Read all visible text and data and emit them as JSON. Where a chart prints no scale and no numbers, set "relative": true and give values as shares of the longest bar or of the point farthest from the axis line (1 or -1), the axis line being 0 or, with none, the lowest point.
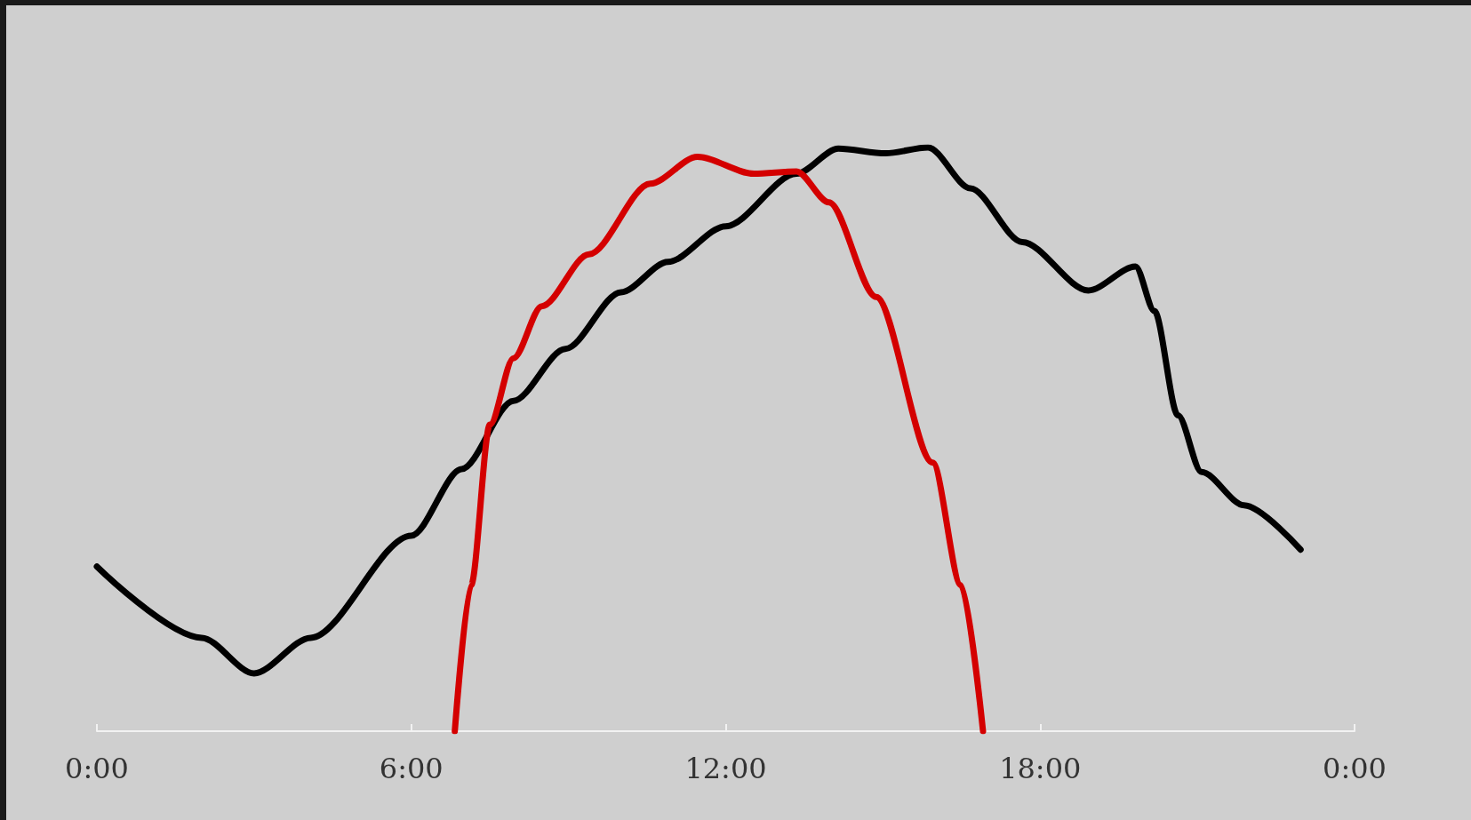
{
  "chart_data": {
    "type": "line",
    "relative": true,
    "grid": false,
    "marker": "none",
    "line_style": "solid",
    "xlim": [
      0,
      24
    ],
    "xticks": [
      {
        "value": 0,
        "label": "0:00"
      },
      {
        "value": 6,
        "label": "6:00"
      },
      {
        "value": 12,
        "label": "12:00"
      },
      {
        "value": 18,
        "label": "18:00"
      },
      {
        "value": 24,
        "label": "0:00"
      }
    ],
    "series": [
      {
        "color": "#000000",
        "x": [
          0,
          2.0,
          3.0,
          4.08,
          6.0,
          6.96,
          7.95,
          8.94,
          10.0,
          10.9,
          12.0,
          13.35,
          14.15,
          15.05,
          15.86,
          16.67,
          17.66,
          18.92,
          19.82,
          20.18,
          20.63,
          21.08,
          21.89,
          22.97
        ],
        "values": [
          0.282,
          0.16,
          0.099,
          0.16,
          0.335,
          0.449,
          0.566,
          0.655,
          0.752,
          0.804,
          0.865,
          0.955,
          0.998,
          0.99,
          1.0,
          0.93,
          0.838,
          0.755,
          0.796,
          0.72,
          0.541,
          0.444,
          0.387,
          0.311
        ]
      },
      {
        "color": "#d40000",
        "x": [
          6.83,
          7.14,
          7.5,
          7.95,
          8.49,
          9.39,
          10.56,
          11.46,
          12.54,
          13.35,
          13.97,
          14.87,
          15.95,
          16.49,
          16.91
        ],
        "values": [
          0,
          0.25,
          0.525,
          0.639,
          0.728,
          0.817,
          0.938,
          0.984,
          0.955,
          0.959,
          0.906,
          0.744,
          0.46,
          0.25,
          0
        ]
      }
    ]
  }
}
